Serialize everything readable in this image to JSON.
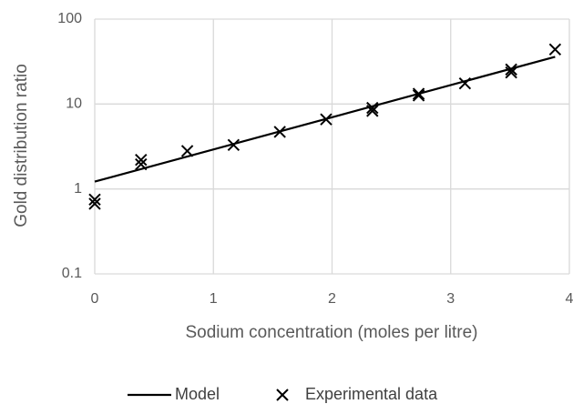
{
  "chart_data": {
    "type": "scatter",
    "x_label": "Sodium concentration (moles per litre)",
    "y_label": "Gold distribution ratio",
    "xlim": [
      0,
      4
    ],
    "xticks": [
      0,
      1,
      2,
      3,
      4
    ],
    "ylim": [
      0.1,
      100
    ],
    "yticks": [
      0.1,
      1,
      10,
      100
    ],
    "y_scale": "log",
    "grid": true,
    "legend": "bottom",
    "series": [
      {
        "name": "Model",
        "mode": "line",
        "color": "#000000",
        "x": [
          0,
          3.88
        ],
        "values": [
          1.22,
          36
        ]
      },
      {
        "name": "Experimental data",
        "mode": "markers",
        "color": "#000000",
        "x": [
          0,
          0,
          0.39,
          0.39,
          0.78,
          1.17,
          1.56,
          1.95,
          2.34,
          2.34,
          2.73,
          2.73,
          3.12,
          3.51,
          3.51,
          3.88
        ],
        "values": [
          0.75,
          0.67,
          2.2,
          1.95,
          2.8,
          3.3,
          4.7,
          6.6,
          9.0,
          8.3,
          13.2,
          12.6,
          17.5,
          25.5,
          23.5,
          44
        ]
      }
    ]
  }
}
